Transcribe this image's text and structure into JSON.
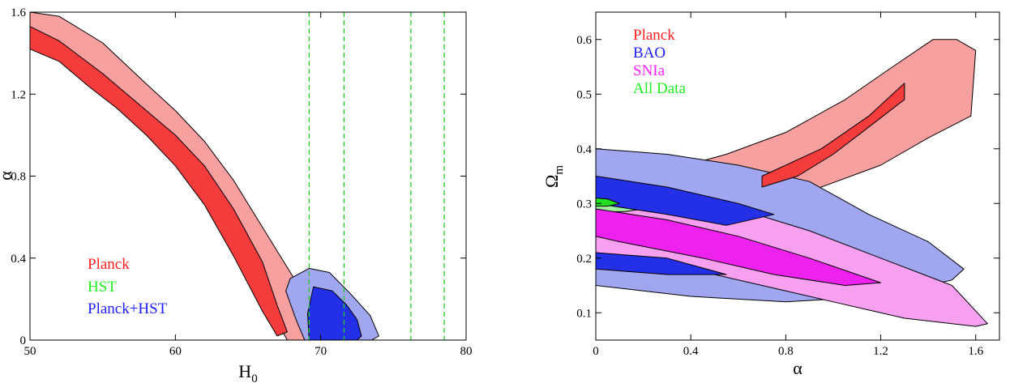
{
  "colors": {
    "planck_outer": "#f8a0a0",
    "planck_inner": "#f53c3c",
    "hst_line": "#22cc22",
    "combined_outer": "#a0a6f0",
    "combined_inner": "#2430e8",
    "bao_outer": "#a0a6f0",
    "bao_inner": "#2430e8",
    "snia_outer": "#f7a0f0",
    "snia_inner": "#ee22ee",
    "all_outer": "#a0f0a0",
    "all_inner": "#22dd22",
    "planck_legend": "#ff2020",
    "hst_legend": "#22ee22",
    "combined_legend": "#2020ff",
    "bao_legend": "#2020ff",
    "snia_legend": "#ff20ff",
    "all_legend": "#22ee22"
  },
  "chart_data": [
    {
      "type": "contour",
      "xlabel": "H",
      "xlabel_sub": "0",
      "ylabel": "α",
      "xlim": [
        50,
        80
      ],
      "ylim": [
        0,
        1.6
      ],
      "xticks": [
        50,
        60,
        70,
        80
      ],
      "yticks": [
        0,
        0.4,
        0.8,
        1.2,
        1.6
      ],
      "ytick_labels": [
        "0",
        "0.4",
        "0.8",
        "1.2",
        "1.6"
      ],
      "legend": [
        "Planck",
        "HST",
        "Planck+HST"
      ],
      "legend_position": "lower-left",
      "series": [
        {
          "name": "Planck",
          "level": "2sigma",
          "points": [
            [
              50,
              1.6
            ],
            [
              52,
              1.58
            ],
            [
              55,
              1.45
            ],
            [
              58,
              1.25
            ],
            [
              60,
              1.12
            ],
            [
              62,
              0.97
            ],
            [
              64,
              0.78
            ],
            [
              66,
              0.55
            ],
            [
              68,
              0.32
            ],
            [
              69,
              0.2
            ],
            [
              70,
              0.1
            ],
            [
              71,
              0.0
            ],
            [
              67.7,
              0.0
            ],
            [
              66.5,
              0.15
            ],
            [
              65,
              0.4
            ],
            [
              63,
              0.68
            ],
            [
              61,
              0.88
            ],
            [
              59,
              1.03
            ],
            [
              57,
              1.15
            ],
            [
              55,
              1.26
            ],
            [
              53,
              1.36
            ],
            [
              51,
              1.42
            ],
            [
              50,
              1.48
            ]
          ]
        },
        {
          "name": "Planck",
          "level": "1sigma",
          "points": [
            [
              50,
              1.53
            ],
            [
              52,
              1.46
            ],
            [
              55,
              1.3
            ],
            [
              58,
              1.12
            ],
            [
              60,
              1.0
            ],
            [
              62,
              0.85
            ],
            [
              64,
              0.64
            ],
            [
              66,
              0.38
            ],
            [
              67,
              0.17
            ],
            [
              67.7,
              0.04
            ],
            [
              67,
              0.02
            ],
            [
              66,
              0.14
            ],
            [
              64,
              0.41
            ],
            [
              62,
              0.66
            ],
            [
              60,
              0.85
            ],
            [
              58,
              1.0
            ],
            [
              56,
              1.13
            ],
            [
              54,
              1.24
            ],
            [
              52,
              1.36
            ],
            [
              51,
              1.39
            ],
            [
              50,
              1.42
            ]
          ]
        },
        {
          "name": "Planck+HST",
          "level": "2sigma",
          "points": [
            [
              68.9,
              0.0
            ],
            [
              68.3,
              0.1
            ],
            [
              67.6,
              0.24
            ],
            [
              67.9,
              0.3
            ],
            [
              69.2,
              0.35
            ],
            [
              70.6,
              0.33
            ],
            [
              72,
              0.23
            ],
            [
              73.4,
              0.12
            ],
            [
              74,
              0.02
            ],
            [
              73.5,
              0.0
            ]
          ]
        },
        {
          "name": "Planck+HST",
          "level": "1sigma",
          "points": [
            [
              69.2,
              0.0
            ],
            [
              69.1,
              0.13
            ],
            [
              69.5,
              0.26
            ],
            [
              70.8,
              0.24
            ],
            [
              71.8,
              0.17
            ],
            [
              72.5,
              0.1
            ],
            [
              72.8,
              0.02
            ],
            [
              72.5,
              0.0
            ]
          ]
        },
        {
          "name": "HST",
          "level": "1sigma",
          "type": "vline",
          "x": [
            69.2,
            71.6
          ]
        },
        {
          "name": "HST",
          "level": "2sigma",
          "type": "vline",
          "x": [
            76.2,
            78.5
          ]
        }
      ]
    },
    {
      "type": "contour",
      "xlabel": "α",
      "ylabel": "Ω",
      "ylabel_sub": "m",
      "xlim": [
        0,
        1.7
      ],
      "ylim": [
        0.05,
        0.65
      ],
      "xticks": [
        0,
        0.4,
        0.8,
        1.2,
        1.6
      ],
      "xtick_labels": [
        "0",
        "0.4",
        "0.8",
        "1.2",
        "1.6"
      ],
      "yticks": [
        0.1,
        0.2,
        0.3,
        0.4,
        0.5,
        0.6
      ],
      "ytick_labels": [
        "0.1",
        "0.2",
        "0.3",
        "0.4",
        "0.5",
        "0.6"
      ],
      "legend": [
        "Planck",
        "BAO",
        "SNIa",
        "All Data"
      ],
      "legend_position": "top-left",
      "series": [
        {
          "name": "Planck",
          "level": "2sigma",
          "points": [
            [
              0.3,
              0.36
            ],
            [
              0.55,
              0.39
            ],
            [
              0.8,
              0.43
            ],
            [
              1.05,
              0.49
            ],
            [
              1.25,
              0.55
            ],
            [
              1.42,
              0.6
            ],
            [
              1.52,
              0.6
            ],
            [
              1.6,
              0.58
            ],
            [
              1.58,
              0.46
            ],
            [
              1.4,
              0.42
            ],
            [
              1.2,
              0.37
            ],
            [
              0.95,
              0.33
            ],
            [
              0.75,
              0.3
            ],
            [
              0.55,
              0.29
            ],
            [
              0.3,
              0.3
            ]
          ]
        },
        {
          "name": "Planck",
          "level": "1sigma",
          "points": [
            [
              0.7,
              0.35
            ],
            [
              0.95,
              0.4
            ],
            [
              1.15,
              0.46
            ],
            [
              1.3,
              0.52
            ],
            [
              1.3,
              0.49
            ],
            [
              1.15,
              0.44
            ],
            [
              1.0,
              0.39
            ],
            [
              0.85,
              0.35
            ],
            [
              0.7,
              0.33
            ]
          ]
        },
        {
          "name": "BAO",
          "level": "2sigma",
          "points": [
            [
              0,
              0.4
            ],
            [
              0.3,
              0.39
            ],
            [
              0.6,
              0.37
            ],
            [
              0.9,
              0.34
            ],
            [
              1.15,
              0.28
            ],
            [
              1.4,
              0.23
            ],
            [
              1.55,
              0.18
            ],
            [
              1.5,
              0.16
            ],
            [
              1.2,
              0.13
            ],
            [
              0.8,
              0.12
            ],
            [
              0.4,
              0.13
            ],
            [
              0,
              0.15
            ]
          ]
        },
        {
          "name": "BAO",
          "level": "1sigma",
          "points": [
            [
              0,
              0.35
            ],
            [
              0.3,
              0.33
            ],
            [
              0.6,
              0.3
            ],
            [
              0.75,
              0.28
            ],
            [
              0.55,
              0.26
            ],
            [
              0.3,
              0.28
            ],
            [
              0,
              0.3
            ]
          ]
        },
        {
          "name": "BAO",
          "level": "1sigma",
          "points": [
            [
              0,
              0.21
            ],
            [
              0.3,
              0.2
            ],
            [
              0.55,
              0.17
            ],
            [
              0.3,
              0.17
            ],
            [
              0,
              0.18
            ]
          ]
        },
        {
          "name": "SNIa",
          "level": "2sigma",
          "points": [
            [
              0,
              0.33
            ],
            [
              0.3,
              0.32
            ],
            [
              0.6,
              0.29
            ],
            [
              0.9,
              0.25
            ],
            [
              1.2,
              0.2
            ],
            [
              1.5,
              0.15
            ],
            [
              1.65,
              0.08
            ],
            [
              1.6,
              0.075
            ],
            [
              1.3,
              0.09
            ],
            [
              1.0,
              0.12
            ],
            [
              0.7,
              0.15
            ],
            [
              0.4,
              0.18
            ],
            [
              0,
              0.21
            ]
          ]
        },
        {
          "name": "SNIa",
          "level": "1sigma",
          "points": [
            [
              0,
              0.29
            ],
            [
              0.3,
              0.27
            ],
            [
              0.6,
              0.24
            ],
            [
              0.9,
              0.2
            ],
            [
              1.2,
              0.155
            ],
            [
              1.05,
              0.15
            ],
            [
              0.75,
              0.17
            ],
            [
              0.45,
              0.2
            ],
            [
              0.1,
              0.23
            ],
            [
              0,
              0.24
            ]
          ]
        },
        {
          "name": "All Data",
          "level": "2sigma",
          "points": [
            [
              0,
              0.335
            ],
            [
              0.1,
              0.32
            ],
            [
              0.18,
              0.31
            ],
            [
              0.24,
              0.3
            ],
            [
              0.2,
              0.29
            ],
            [
              0.12,
              0.285
            ],
            [
              0,
              0.285
            ]
          ]
        },
        {
          "name": "All Data",
          "level": "1sigma",
          "points": [
            [
              0,
              0.31
            ],
            [
              0.05,
              0.308
            ],
            [
              0.1,
              0.3
            ],
            [
              0.05,
              0.295
            ],
            [
              0,
              0.295
            ]
          ]
        }
      ]
    }
  ]
}
